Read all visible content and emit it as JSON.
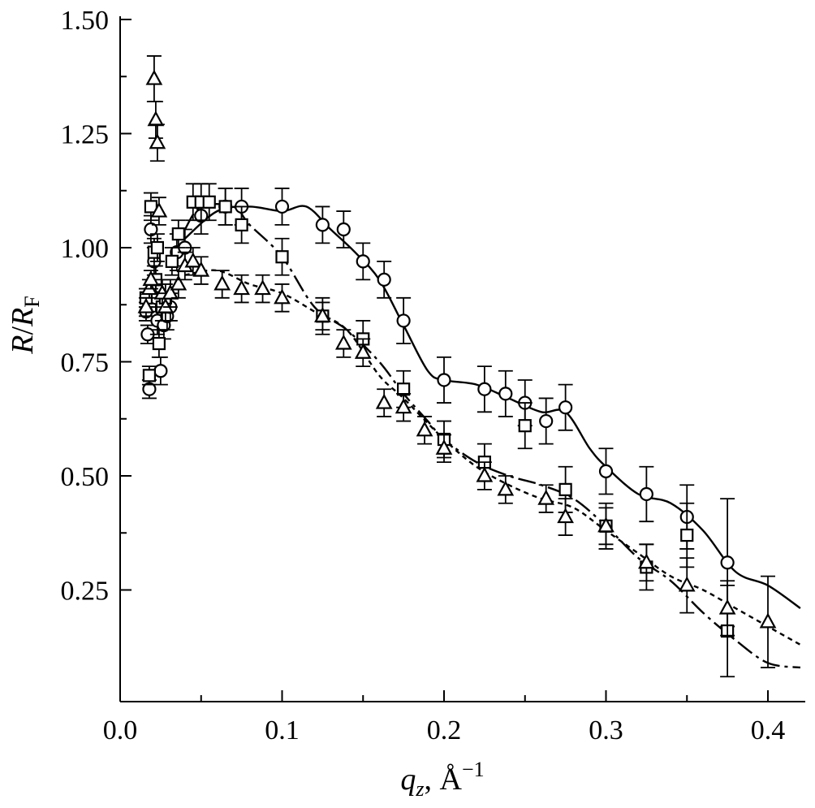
{
  "chart_data": {
    "type": "scatter",
    "xlabel": {
      "main": "q",
      "sub": "z",
      "rest": ", Å",
      "sup": "−1"
    },
    "ylabel": {
      "main": "R",
      "slash": "/",
      "main2": "R",
      "sub": "F"
    },
    "xlim": [
      0.0,
      0.42
    ],
    "ylim": [
      0.05,
      1.5
    ],
    "xticks": [
      0.0,
      0.1,
      0.2,
      0.3,
      0.4
    ],
    "xtick_labels": [
      "0.0",
      "0.1",
      "0.2",
      "0.3",
      "0.4"
    ],
    "yticks": [
      0.25,
      0.5,
      0.75,
      1.0,
      1.25,
      1.5
    ],
    "ytick_labels": [
      "0.25",
      "0.50",
      "0.75",
      "1.00",
      "1.25",
      "1.50"
    ],
    "grid": false,
    "series": [
      {
        "marker": "circle",
        "line_style": "solid",
        "points": [
          {
            "x": 0.016,
            "y": 0.86,
            "err": 0.02
          },
          {
            "x": 0.017,
            "y": 0.81,
            "err": 0.02
          },
          {
            "x": 0.018,
            "y": 0.69,
            "err": 0.02
          },
          {
            "x": 0.019,
            "y": 1.04,
            "err": 0.03
          },
          {
            "x": 0.021,
            "y": 0.97,
            "err": 0.03
          },
          {
            "x": 0.022,
            "y": 0.89,
            "err": 0.03
          },
          {
            "x": 0.023,
            "y": 0.84,
            "err": 0.03
          },
          {
            "x": 0.025,
            "y": 0.73,
            "err": 0.03
          },
          {
            "x": 0.027,
            "y": 0.83,
            "err": 0.03
          },
          {
            "x": 0.029,
            "y": 0.85,
            "err": 0.03
          },
          {
            "x": 0.031,
            "y": 0.87,
            "err": 0.03
          },
          {
            "x": 0.035,
            "y": 0.99,
            "err": 0.04
          },
          {
            "x": 0.04,
            "y": 1.0,
            "err": 0.04
          },
          {
            "x": 0.05,
            "y": 1.07,
            "err": 0.04
          },
          {
            "x": 0.065,
            "y": 1.09,
            "err": 0.04
          },
          {
            "x": 0.075,
            "y": 1.09,
            "err": 0.04
          },
          {
            "x": 0.1,
            "y": 1.09,
            "err": 0.04
          },
          {
            "x": 0.125,
            "y": 1.05,
            "err": 0.04
          },
          {
            "x": 0.138,
            "y": 1.04,
            "err": 0.04
          },
          {
            "x": 0.15,
            "y": 0.97,
            "err": 0.04
          },
          {
            "x": 0.163,
            "y": 0.93,
            "err": 0.04
          },
          {
            "x": 0.175,
            "y": 0.84,
            "err": 0.05
          },
          {
            "x": 0.2,
            "y": 0.71,
            "err": 0.05
          },
          {
            "x": 0.225,
            "y": 0.69,
            "err": 0.05
          },
          {
            "x": 0.238,
            "y": 0.68,
            "err": 0.05
          },
          {
            "x": 0.25,
            "y": 0.66,
            "err": 0.05
          },
          {
            "x": 0.263,
            "y": 0.62,
            "err": 0.05
          },
          {
            "x": 0.275,
            "y": 0.65,
            "err": 0.05
          },
          {
            "x": 0.3,
            "y": 0.51,
            "err": 0.05
          },
          {
            "x": 0.325,
            "y": 0.46,
            "err": 0.06
          },
          {
            "x": 0.35,
            "y": 0.41,
            "err": 0.07
          },
          {
            "x": 0.375,
            "y": 0.31,
            "err": 0.14
          }
        ],
        "fit": [
          [
            0.04,
            1.02
          ],
          [
            0.06,
            1.08
          ],
          [
            0.08,
            1.09
          ],
          [
            0.1,
            1.08
          ],
          [
            0.115,
            1.09
          ],
          [
            0.13,
            1.04
          ],
          [
            0.145,
            0.99
          ],
          [
            0.16,
            0.93
          ],
          [
            0.175,
            0.83
          ],
          [
            0.19,
            0.73
          ],
          [
            0.2,
            0.71
          ],
          [
            0.22,
            0.7
          ],
          [
            0.24,
            0.67
          ],
          [
            0.26,
            0.64
          ],
          [
            0.275,
            0.64
          ],
          [
            0.29,
            0.56
          ],
          [
            0.3,
            0.52
          ],
          [
            0.32,
            0.46
          ],
          [
            0.34,
            0.44
          ],
          [
            0.36,
            0.38
          ],
          [
            0.38,
            0.29
          ],
          [
            0.4,
            0.26
          ],
          [
            0.42,
            0.21
          ]
        ]
      },
      {
        "marker": "square",
        "line_style": "dash-dot",
        "points": [
          {
            "x": 0.016,
            "y": 0.89,
            "err": 0.02
          },
          {
            "x": 0.018,
            "y": 0.72,
            "err": 0.02
          },
          {
            "x": 0.019,
            "y": 1.09,
            "err": 0.03
          },
          {
            "x": 0.021,
            "y": 0.99,
            "err": 0.03
          },
          {
            "x": 0.022,
            "y": 0.93,
            "err": 0.03
          },
          {
            "x": 0.023,
            "y": 1.0,
            "err": 0.03
          },
          {
            "x": 0.024,
            "y": 0.79,
            "err": 0.03
          },
          {
            "x": 0.026,
            "y": 0.87,
            "err": 0.03
          },
          {
            "x": 0.028,
            "y": 0.89,
            "err": 0.03
          },
          {
            "x": 0.032,
            "y": 0.97,
            "err": 0.03
          },
          {
            "x": 0.036,
            "y": 1.03,
            "err": 0.03
          },
          {
            "x": 0.045,
            "y": 1.1,
            "err": 0.04
          },
          {
            "x": 0.05,
            "y": 1.1,
            "err": 0.04
          },
          {
            "x": 0.055,
            "y": 1.1,
            "err": 0.04
          },
          {
            "x": 0.065,
            "y": 1.09,
            "err": 0.04
          },
          {
            "x": 0.075,
            "y": 1.05,
            "err": 0.04
          },
          {
            "x": 0.1,
            "y": 0.98,
            "err": 0.04
          },
          {
            "x": 0.125,
            "y": 0.85,
            "err": 0.04
          },
          {
            "x": 0.15,
            "y": 0.8,
            "err": 0.04
          },
          {
            "x": 0.175,
            "y": 0.69,
            "err": 0.04
          },
          {
            "x": 0.2,
            "y": 0.58,
            "err": 0.04
          },
          {
            "x": 0.225,
            "y": 0.53,
            "err": 0.04
          },
          {
            "x": 0.25,
            "y": 0.61,
            "err": 0.05
          },
          {
            "x": 0.275,
            "y": 0.47,
            "err": 0.05
          },
          {
            "x": 0.3,
            "y": 0.39,
            "err": 0.05
          },
          {
            "x": 0.325,
            "y": 0.3,
            "err": 0.05
          },
          {
            "x": 0.35,
            "y": 0.37,
            "err": 0.07
          },
          {
            "x": 0.375,
            "y": 0.16,
            "err": 0.1
          }
        ],
        "fit": [
          [
            0.04,
            1.04
          ],
          [
            0.05,
            1.09
          ],
          [
            0.07,
            1.09
          ],
          [
            0.08,
            1.05
          ],
          [
            0.1,
            0.98
          ],
          [
            0.12,
            0.87
          ],
          [
            0.14,
            0.82
          ],
          [
            0.16,
            0.75
          ],
          [
            0.175,
            0.68
          ],
          [
            0.19,
            0.62
          ],
          [
            0.2,
            0.58
          ],
          [
            0.22,
            0.53
          ],
          [
            0.24,
            0.5
          ],
          [
            0.26,
            0.48
          ],
          [
            0.28,
            0.45
          ],
          [
            0.3,
            0.39
          ],
          [
            0.32,
            0.32
          ],
          [
            0.34,
            0.27
          ],
          [
            0.36,
            0.2
          ],
          [
            0.38,
            0.14
          ],
          [
            0.4,
            0.09
          ],
          [
            0.42,
            0.08
          ]
        ]
      },
      {
        "marker": "triangle",
        "line_style": "dotted",
        "points": [
          {
            "x": 0.016,
            "y": 0.87,
            "err": 0.02
          },
          {
            "x": 0.018,
            "y": 0.91,
            "err": 0.02
          },
          {
            "x": 0.019,
            "y": 0.93,
            "err": 0.02
          },
          {
            "x": 0.021,
            "y": 1.37,
            "err": 0.05
          },
          {
            "x": 0.022,
            "y": 1.28,
            "err": 0.04
          },
          {
            "x": 0.023,
            "y": 1.23,
            "err": 0.04
          },
          {
            "x": 0.024,
            "y": 1.08,
            "err": 0.03
          },
          {
            "x": 0.026,
            "y": 0.9,
            "err": 0.03
          },
          {
            "x": 0.028,
            "y": 0.87,
            "err": 0.03
          },
          {
            "x": 0.031,
            "y": 0.9,
            "err": 0.03
          },
          {
            "x": 0.036,
            "y": 0.92,
            "err": 0.03
          },
          {
            "x": 0.04,
            "y": 0.96,
            "err": 0.03
          },
          {
            "x": 0.045,
            "y": 0.97,
            "err": 0.03
          },
          {
            "x": 0.05,
            "y": 0.95,
            "err": 0.03
          },
          {
            "x": 0.063,
            "y": 0.92,
            "err": 0.03
          },
          {
            "x": 0.075,
            "y": 0.91,
            "err": 0.03
          },
          {
            "x": 0.088,
            "y": 0.91,
            "err": 0.03
          },
          {
            "x": 0.1,
            "y": 0.89,
            "err": 0.03
          },
          {
            "x": 0.125,
            "y": 0.85,
            "err": 0.03
          },
          {
            "x": 0.138,
            "y": 0.79,
            "err": 0.03
          },
          {
            "x": 0.15,
            "y": 0.77,
            "err": 0.03
          },
          {
            "x": 0.163,
            "y": 0.66,
            "err": 0.03
          },
          {
            "x": 0.175,
            "y": 0.65,
            "err": 0.03
          },
          {
            "x": 0.188,
            "y": 0.6,
            "err": 0.03
          },
          {
            "x": 0.2,
            "y": 0.56,
            "err": 0.03
          },
          {
            "x": 0.225,
            "y": 0.5,
            "err": 0.03
          },
          {
            "x": 0.238,
            "y": 0.47,
            "err": 0.03
          },
          {
            "x": 0.263,
            "y": 0.45,
            "err": 0.03
          },
          {
            "x": 0.275,
            "y": 0.41,
            "err": 0.04
          },
          {
            "x": 0.3,
            "y": 0.39,
            "err": 0.04
          },
          {
            "x": 0.325,
            "y": 0.31,
            "err": 0.04
          },
          {
            "x": 0.35,
            "y": 0.26,
            "err": 0.06
          },
          {
            "x": 0.375,
            "y": 0.21,
            "err": 0.06
          },
          {
            "x": 0.4,
            "y": 0.18,
            "err": 0.1
          }
        ],
        "fit": [
          [
            0.04,
            0.94
          ],
          [
            0.06,
            0.95
          ],
          [
            0.08,
            0.92
          ],
          [
            0.1,
            0.9
          ],
          [
            0.12,
            0.86
          ],
          [
            0.14,
            0.82
          ],
          [
            0.16,
            0.72
          ],
          [
            0.175,
            0.67
          ],
          [
            0.2,
            0.58
          ],
          [
            0.22,
            0.52
          ],
          [
            0.24,
            0.48
          ],
          [
            0.26,
            0.45
          ],
          [
            0.28,
            0.43
          ],
          [
            0.3,
            0.38
          ],
          [
            0.32,
            0.33
          ],
          [
            0.34,
            0.28
          ],
          [
            0.36,
            0.25
          ],
          [
            0.38,
            0.21
          ],
          [
            0.4,
            0.17
          ],
          [
            0.42,
            0.13
          ]
        ]
      }
    ]
  }
}
